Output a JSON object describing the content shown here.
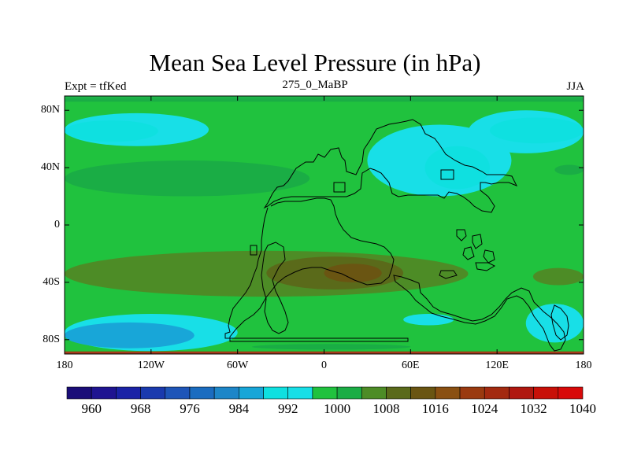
{
  "header": {
    "title": "Mean Sea Level Pressure (in hPa)",
    "left": "Expt = tfKed",
    "center": "275_0_MaBP",
    "right": "JJA"
  },
  "colors": {
    "palette": [
      "#1a0d78",
      "#1f1491",
      "#1a22a6",
      "#1a3aae",
      "#1e55b8",
      "#1a6cc0",
      "#1d86c8",
      "#18a6d8",
      "#0fe0e0",
      "#18dfe7",
      "#20c23e",
      "#1aad45",
      "#4d8c26",
      "#5a6a1a",
      "#6a5512",
      "#8a5012",
      "#9a3a10",
      "#a32a10",
      "#b01810",
      "#c81008",
      "#d80a0a"
    ],
    "frame_top": "#1fb44a",
    "frame_bottom": "#a63b1b"
  },
  "chart_data": {
    "type": "heatmap",
    "x_ticks": [
      "180",
      "120W",
      "60W",
      "0",
      "60E",
      "120E",
      "180"
    ],
    "y_ticks": [
      "80N",
      "40N",
      "0",
      "40S",
      "80S"
    ],
    "xlim": [
      -180,
      180
    ],
    "ylim": [
      -90,
      90
    ],
    "colorbar": {
      "min": 956,
      "max": 1040,
      "step": 4,
      "labels": [
        "960",
        "968",
        "976",
        "984",
        "992",
        "1000",
        "1008",
        "1016",
        "1024",
        "1032",
        "1040"
      ]
    },
    "regions": [
      {
        "name": "arctic-band",
        "value": 1002,
        "lat": [
          86,
          90
        ],
        "lon": [
          -180,
          180
        ]
      },
      {
        "name": "north-pacific-low-outer",
        "value": 994,
        "lat": [
          55,
          78
        ],
        "lon": [
          -180,
          -80
        ]
      },
      {
        "name": "north-pacific-low-inner",
        "value": 990,
        "lat": [
          58,
          73
        ],
        "lon": [
          -180,
          -115
        ]
      },
      {
        "name": "siberia-low-outer",
        "value": 994,
        "lat": [
          50,
          80
        ],
        "lon": [
          100,
          180
        ]
      },
      {
        "name": "siberia-low-inner",
        "value": 990,
        "lat": [
          57,
          75
        ],
        "lon": [
          115,
          180
        ]
      },
      {
        "name": "north-atlantic-high",
        "value": 1002,
        "lat": [
          20,
          45
        ],
        "lon": [
          -180,
          -10
        ]
      },
      {
        "name": "east-pacific-high",
        "value": 1002,
        "lat": [
          35,
          42
        ],
        "lon": [
          160,
          180
        ]
      },
      {
        "name": "asian-low-outer",
        "value": 994,
        "lat": [
          20,
          70
        ],
        "lon": [
          30,
          130
        ]
      },
      {
        "name": "asian-low-inner",
        "value": 990,
        "lat": [
          25,
          55
        ],
        "lon": [
          70,
          115
        ]
      },
      {
        "name": "southern-high-outer",
        "value": 1004,
        "lat": [
          -50,
          -18
        ],
        "lon": [
          -180,
          100
        ]
      },
      {
        "name": "southern-high-mid",
        "value": 1010,
        "lat": [
          -45,
          -22
        ],
        "lon": [
          -40,
          55
        ]
      },
      {
        "name": "southern-high-core",
        "value": 1014,
        "lat": [
          -40,
          -27
        ],
        "lon": [
          0,
          40
        ]
      },
      {
        "name": "pacific-southern-high",
        "value": 1004,
        "lat": [
          -42,
          -30
        ],
        "lon": [
          145,
          180
        ]
      },
      {
        "name": "antarctic-low-outer",
        "value": 994,
        "lat": [
          -88,
          -62
        ],
        "lon": [
          -180,
          -60
        ]
      },
      {
        "name": "antarctic-low-inner",
        "value": 986,
        "lat": [
          -86,
          -68
        ],
        "lon": [
          -180,
          -90
        ]
      },
      {
        "name": "indian-ocean-low",
        "value": 994,
        "lat": [
          -70,
          -62
        ],
        "lon": [
          55,
          90
        ]
      },
      {
        "name": "australian-low",
        "value": 994,
        "lat": [
          -82,
          -55
        ],
        "lon": [
          140,
          180
        ]
      },
      {
        "name": "south-strip-high",
        "value": 1002,
        "lat": [
          -87,
          -83
        ],
        "lon": [
          -50,
          60
        ]
      },
      {
        "name": "south-edge",
        "value": 1006,
        "lat": [
          -90,
          -88
        ],
        "lon": [
          -180,
          180
        ]
      }
    ]
  }
}
